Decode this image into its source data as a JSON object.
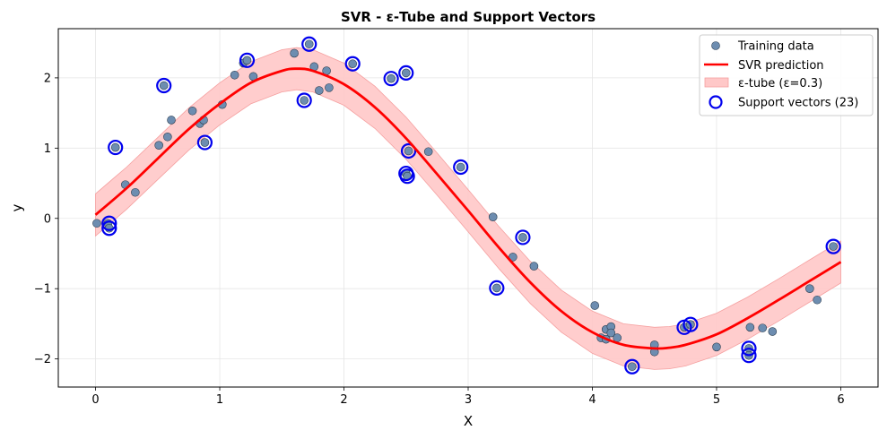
{
  "chart_data": {
    "type": "scatter",
    "title": "SVR - ε-Tube and Support Vectors",
    "xlabel": "X",
    "ylabel": "y",
    "xlim": [
      -0.3,
      6.3
    ],
    "ylim": [
      -2.4,
      2.7
    ],
    "xticks": [
      0,
      1,
      2,
      3,
      4,
      5,
      6
    ],
    "yticks": [
      -2,
      -1,
      0,
      1,
      2
    ],
    "grid": true,
    "legend_position": "top-right",
    "colors": {
      "training": "#6d8db0",
      "training_edge": "#2c3e50",
      "prediction": "#ff0000",
      "tube_fill": "#ffc8c8",
      "tube_edge": "#f5a0a0",
      "support_vector": "#0000ee"
    },
    "legend": {
      "training": "Training data",
      "prediction": "SVR prediction",
      "tube": "ε-tube (ε=0.3)",
      "support_vectors": "Support vectors (23)"
    },
    "epsilon": 0.3,
    "prediction": {
      "x": [
        0.0,
        0.25,
        0.5,
        0.75,
        1.0,
        1.25,
        1.5,
        1.62,
        1.75,
        2.0,
        2.25,
        2.5,
        2.75,
        3.0,
        3.25,
        3.5,
        3.75,
        4.0,
        4.25,
        4.5,
        4.62,
        4.75,
        5.0,
        5.25,
        5.5,
        5.75,
        6.0
      ],
      "y": [
        0.05,
        0.43,
        0.85,
        1.27,
        1.63,
        1.93,
        2.1,
        2.13,
        2.1,
        1.91,
        1.58,
        1.14,
        0.63,
        0.11,
        -0.42,
        -0.91,
        -1.32,
        -1.62,
        -1.8,
        -1.85,
        -1.84,
        -1.8,
        -1.65,
        -1.42,
        -1.16,
        -0.89,
        -0.62
      ]
    },
    "training_points": [
      [
        0.01,
        -0.07
      ],
      [
        0.1,
        -0.07
      ],
      [
        0.11,
        -0.14
      ],
      [
        0.16,
        1.01
      ],
      [
        0.24,
        0.48
      ],
      [
        0.32,
        0.37
      ],
      [
        0.51,
        1.04
      ],
      [
        0.55,
        1.89
      ],
      [
        0.58,
        1.16
      ],
      [
        0.61,
        1.4
      ],
      [
        0.78,
        1.53
      ],
      [
        0.84,
        1.35
      ],
      [
        0.87,
        1.4
      ],
      [
        0.88,
        1.08
      ],
      [
        1.02,
        1.62
      ],
      [
        1.12,
        2.04
      ],
      [
        1.19,
        2.21
      ],
      [
        1.22,
        2.25
      ],
      [
        1.27,
        2.02
      ],
      [
        1.6,
        2.35
      ],
      [
        1.68,
        1.68
      ],
      [
        1.72,
        2.48
      ],
      [
        1.76,
        2.16
      ],
      [
        1.8,
        1.82
      ],
      [
        1.86,
        2.1
      ],
      [
        1.88,
        1.86
      ],
      [
        2.07,
        2.2
      ],
      [
        2.38,
        1.99
      ],
      [
        2.5,
        2.07
      ],
      [
        2.5,
        0.64
      ],
      [
        2.51,
        0.6
      ],
      [
        2.52,
        0.96
      ],
      [
        2.68,
        0.95
      ],
      [
        2.94,
        0.73
      ],
      [
        3.2,
        0.02
      ],
      [
        3.23,
        -0.99
      ],
      [
        3.36,
        -0.55
      ],
      [
        3.44,
        -0.27
      ],
      [
        3.53,
        -0.68
      ],
      [
        4.02,
        -1.24
      ],
      [
        4.07,
        -1.7
      ],
      [
        4.11,
        -1.72
      ],
      [
        4.11,
        -1.58
      ],
      [
        4.15,
        -1.54
      ],
      [
        4.15,
        -1.63
      ],
      [
        4.2,
        -1.7
      ],
      [
        4.32,
        -2.11
      ],
      [
        4.5,
        -1.8
      ],
      [
        4.5,
        -1.9
      ],
      [
        4.74,
        -1.55
      ],
      [
        4.79,
        -1.51
      ],
      [
        5.0,
        -1.83
      ],
      [
        5.26,
        -1.85
      ],
      [
        5.26,
        -1.95
      ],
      [
        5.27,
        -1.55
      ],
      [
        5.37,
        -1.56
      ],
      [
        5.45,
        -1.61
      ],
      [
        5.75,
        -1.0
      ],
      [
        5.81,
        -1.16
      ],
      [
        5.94,
        -0.4
      ]
    ],
    "support_vectors": [
      [
        0.11,
        -0.07
      ],
      [
        0.11,
        -0.14
      ],
      [
        0.16,
        1.01
      ],
      [
        0.55,
        1.89
      ],
      [
        0.88,
        1.08
      ],
      [
        1.22,
        2.25
      ],
      [
        1.68,
        1.68
      ],
      [
        1.72,
        2.48
      ],
      [
        2.07,
        2.2
      ],
      [
        2.38,
        1.99
      ],
      [
        2.5,
        2.07
      ],
      [
        2.5,
        0.64
      ],
      [
        2.51,
        0.6
      ],
      [
        2.52,
        0.96
      ],
      [
        2.94,
        0.73
      ],
      [
        3.23,
        -0.99
      ],
      [
        3.44,
        -0.27
      ],
      [
        4.32,
        -2.11
      ],
      [
        4.74,
        -1.55
      ],
      [
        4.79,
        -1.51
      ],
      [
        5.26,
        -1.85
      ],
      [
        5.26,
        -1.95
      ],
      [
        5.94,
        -0.4
      ]
    ]
  }
}
